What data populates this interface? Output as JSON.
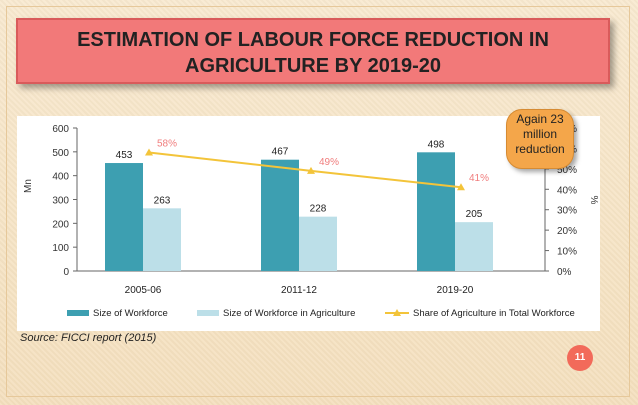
{
  "slide": {
    "title_line1": "ESTIMATION OF LABOUR FORCE REDUCTION IN",
    "title_line2": "AGRICULTURE BY 2019-20",
    "callout": [
      "Again 23",
      "million",
      "reduction"
    ],
    "source": "Source: FICCI report (2015)",
    "page_number": "11"
  },
  "colors": {
    "workforce": "#3d9fb1",
    "agri_workforce": "#bcdfe8",
    "share_line": "#f3c43a",
    "share_label": "#f07d7d"
  },
  "chart_data": {
    "type": "bar",
    "categories": [
      "2005-06",
      "2011-12",
      "2019-20"
    ],
    "series": [
      {
        "name": "Size of Workforce",
        "values": [
          453,
          467,
          498
        ]
      },
      {
        "name": "Size of Workforce in Agriculture",
        "values": [
          263,
          228,
          205
        ]
      }
    ],
    "line_series": {
      "name": "Share of Agriculture in Total Workforce",
      "values": [
        58,
        49,
        41
      ],
      "labels": [
        "58%",
        "49%",
        "41%"
      ]
    },
    "ylabel": "Mn",
    "ylim": [
      0,
      600
    ],
    "yticks": [
      "0",
      "100",
      "200",
      "300",
      "400",
      "500",
      "600"
    ],
    "y2label": "%",
    "y2lim": [
      0,
      70
    ],
    "y2ticks": [
      "0%",
      "10%",
      "20%",
      "30%",
      "40%",
      "50%",
      "60%",
      "70%"
    ],
    "bar_labels": [
      [
        "453",
        "467",
        "498"
      ],
      [
        "263",
        "228",
        "205"
      ]
    ],
    "legend_position": "bottom"
  }
}
